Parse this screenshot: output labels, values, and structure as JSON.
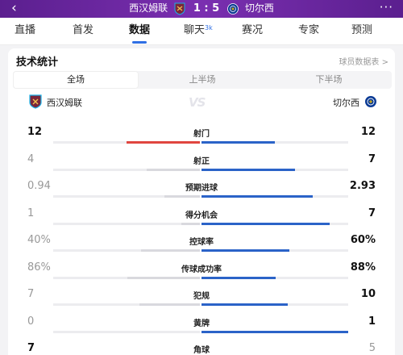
{
  "header": {
    "home_team": "西汉姆联",
    "score": "1 : 5",
    "away_team": "切尔西",
    "back_icon": "chevron-left-icon",
    "more_icon": "more-dots-icon"
  },
  "tabs": [
    {
      "label": "直播",
      "active": false,
      "badge": ""
    },
    {
      "label": "首发",
      "active": false,
      "badge": ""
    },
    {
      "label": "数据",
      "active": true,
      "badge": ""
    },
    {
      "label": "聊天",
      "active": false,
      "badge": "3k"
    },
    {
      "label": "赛况",
      "active": false,
      "badge": ""
    },
    {
      "label": "专家",
      "active": false,
      "badge": ""
    },
    {
      "label": "预测",
      "active": false,
      "badge": ""
    }
  ],
  "section": {
    "title": "技术统计",
    "link": "球员数据表 >"
  },
  "segments": [
    {
      "label": "全场",
      "active": true
    },
    {
      "label": "上半场",
      "active": false
    },
    {
      "label": "下半场",
      "active": false
    }
  ],
  "teams": {
    "home": "西汉姆联",
    "away": "切尔西",
    "vs": "VS"
  },
  "colors": {
    "home": "#e0463f",
    "away": "#2b63c8",
    "accent": "#2f6fe4",
    "header": "#6b2aa0"
  },
  "stats": [
    {
      "label": "射门",
      "home_text": "12",
      "away_text": "12",
      "home": 12,
      "away": 12
    },
    {
      "label": "射正",
      "home_text": "4",
      "away_text": "7",
      "home": 4,
      "away": 7
    },
    {
      "label": "预期进球",
      "home_text": "0.94",
      "away_text": "2.93",
      "home": 0.94,
      "away": 2.93
    },
    {
      "label": "得分机会",
      "home_text": "1",
      "away_text": "7",
      "home": 1,
      "away": 7
    },
    {
      "label": "控球率",
      "home_text": "40%",
      "away_text": "60%",
      "home": 40,
      "away": 60
    },
    {
      "label": "传球成功率",
      "home_text": "86%",
      "away_text": "88%",
      "home": 86,
      "away": 88
    },
    {
      "label": "犯规",
      "home_text": "7",
      "away_text": "10",
      "home": 7,
      "away": 10
    },
    {
      "label": "黄牌",
      "home_text": "0",
      "away_text": "1",
      "home": 0,
      "away": 1
    },
    {
      "label": "角球",
      "home_text": "7",
      "away_text": "5",
      "home": 7,
      "away": 5
    }
  ]
}
